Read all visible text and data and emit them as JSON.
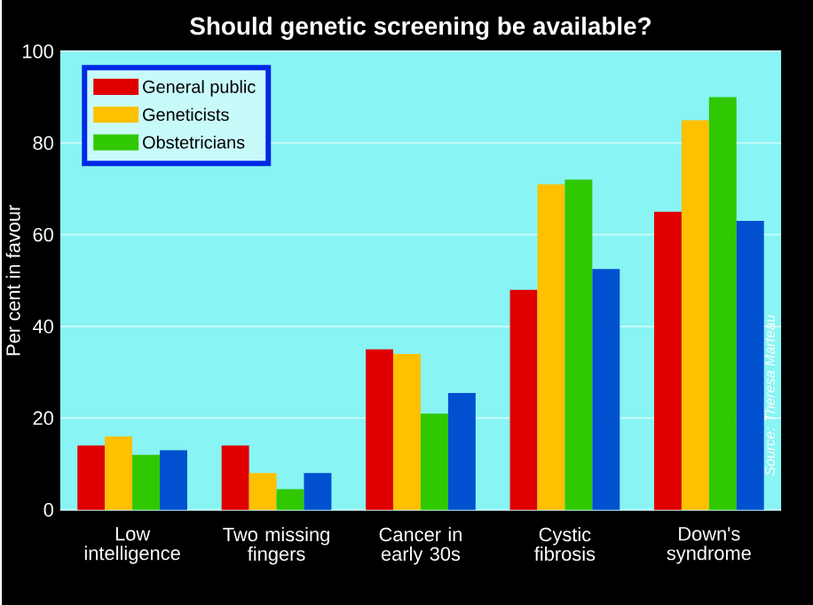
{
  "chart_data": {
    "type": "bar",
    "title": "Should genetic screening be available?",
    "ylabel": "Per cent in favour",
    "categories": [
      "Low intelligence",
      "Two missing fingers",
      "Cancer in early 30s",
      "Cystic fibrosis",
      "Down's syndrome"
    ],
    "series": [
      {
        "name": "General public",
        "color": "#e00000",
        "values": [
          14,
          14,
          35,
          48,
          65
        ]
      },
      {
        "name": "Geneticists",
        "color": "#ffc000",
        "values": [
          16,
          8,
          34,
          71,
          85
        ]
      },
      {
        "name": "Obstetricians",
        "color": "#30c800",
        "values": [
          12,
          4.5,
          21,
          72,
          90
        ]
      },
      {
        "color": "#0050d0",
        "values": [
          13,
          8,
          25.5,
          52.5,
          63
        ]
      }
    ],
    "ylim": [
      0,
      100
    ],
    "yticks": [
      0,
      20,
      40,
      60,
      80,
      100
    ],
    "grid": "y",
    "legend": "top left",
    "annotations": [
      "Source: Theresa Marteau"
    ]
  }
}
